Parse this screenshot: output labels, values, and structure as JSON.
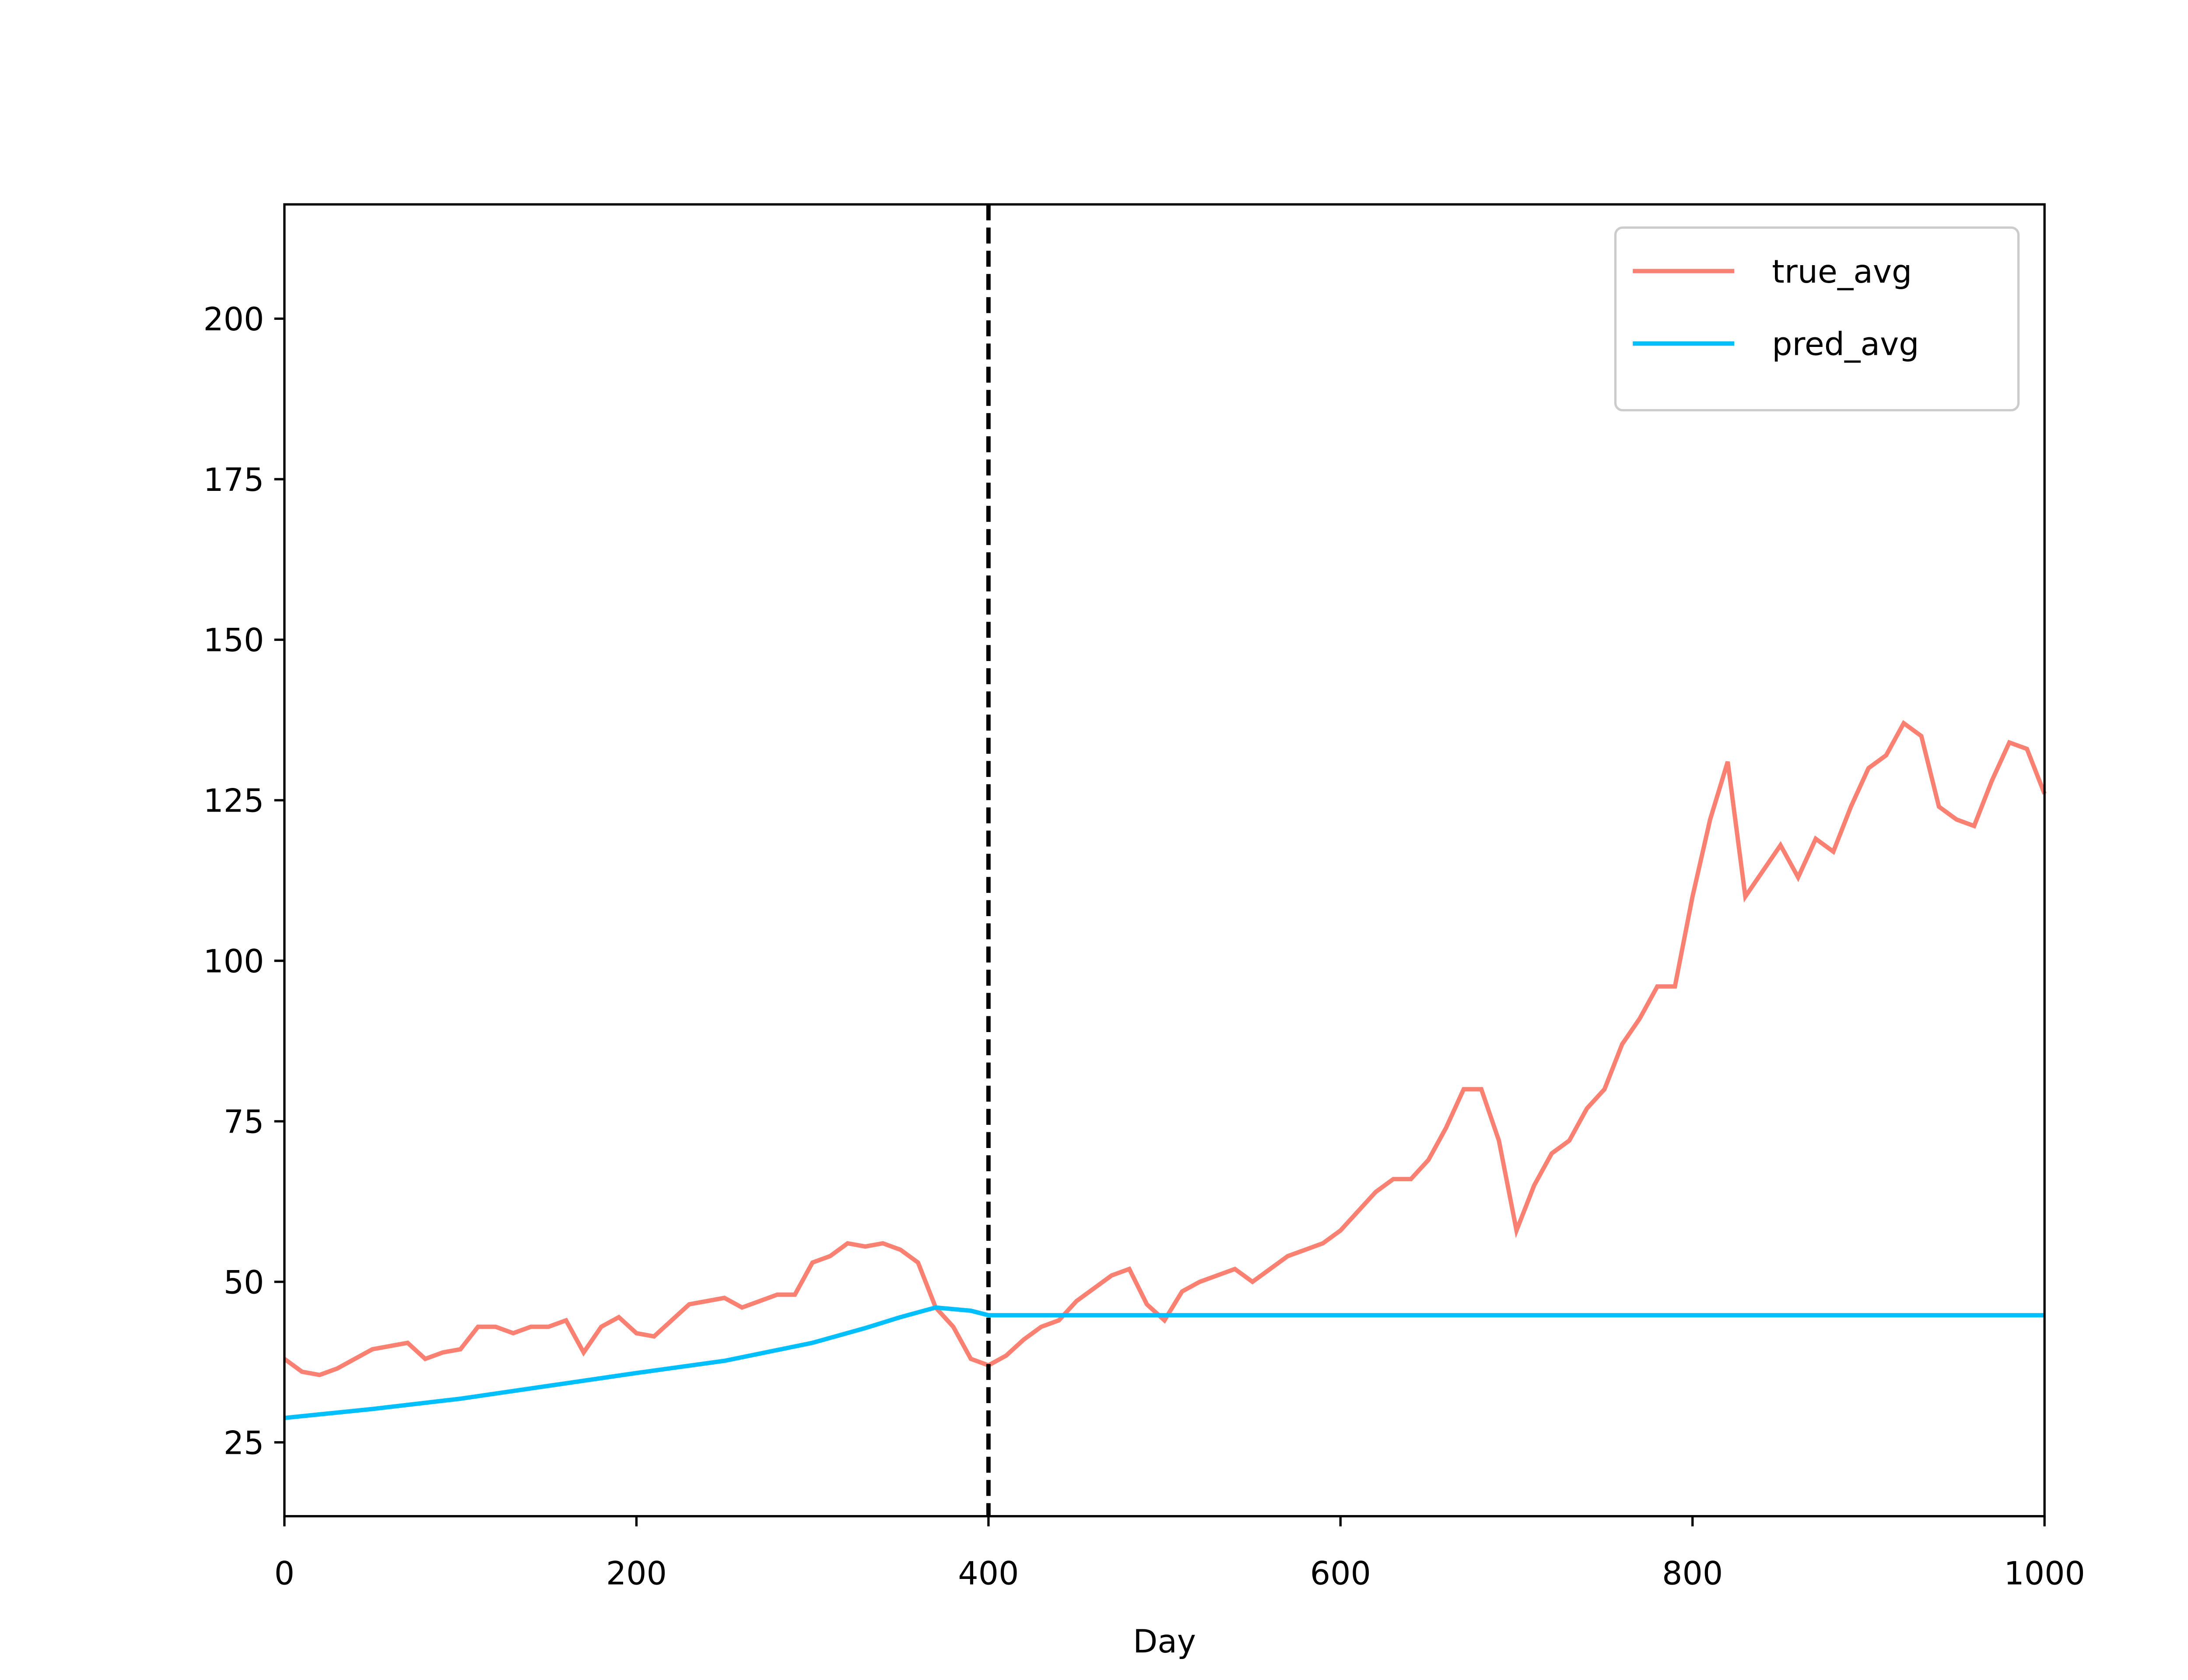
{
  "chart_data": {
    "type": "line",
    "x_label": "Day",
    "xlim": [
      0,
      1000
    ],
    "xticks": [
      0,
      200,
      400,
      600,
      800,
      1000
    ],
    "ylim": [
      13.5,
      217.8
    ],
    "yticks": [
      25,
      50,
      75,
      100,
      125,
      150,
      175,
      200
    ],
    "vline_x": 400,
    "legend": "upper right",
    "series": [
      {
        "name": "true_avg",
        "color": "#fa8072",
        "x": [
          0,
          10,
          20,
          30,
          40,
          50,
          60,
          70,
          80,
          90,
          100,
          110,
          120,
          130,
          140,
          150,
          160,
          170,
          180,
          190,
          200,
          210,
          220,
          230,
          240,
          250,
          260,
          270,
          280,
          290,
          300,
          310,
          320,
          330,
          340,
          350,
          360,
          370,
          380,
          390,
          400,
          410,
          420,
          430,
          440,
          450,
          460,
          470,
          480,
          490,
          500,
          510,
          520,
          530,
          540,
          550,
          560,
          570,
          580,
          590,
          600,
          610,
          620,
          630,
          640,
          650,
          660,
          670,
          680,
          690,
          700,
          710,
          720,
          730,
          740,
          750,
          760,
          770,
          780,
          790,
          800,
          810,
          820,
          830,
          840,
          850,
          860,
          870,
          880,
          890,
          900,
          910,
          920,
          930,
          940,
          950,
          960,
          970,
          980,
          990,
          1000
        ],
        "values": [
          38,
          36,
          35.5,
          36.5,
          38,
          39.5,
          40,
          40.5,
          38,
          39,
          39.5,
          43,
          43,
          42,
          43,
          43,
          44,
          39,
          43,
          44.5,
          42,
          41.5,
          44,
          46.5,
          47,
          47.5,
          46,
          47,
          48,
          48,
          53,
          54,
          56,
          55.5,
          56,
          55,
          53,
          46,
          43,
          38,
          37,
          38.5,
          41,
          43,
          44,
          47,
          49,
          51,
          52,
          46.5,
          44,
          48.5,
          50,
          51,
          52,
          50,
          52,
          54,
          55,
          56,
          58,
          61,
          64,
          66,
          66,
          69,
          74,
          80,
          80,
          72,
          58,
          65,
          70,
          72,
          77,
          80,
          87,
          91,
          96,
          96,
          110,
          122,
          131,
          110,
          114,
          118,
          113,
          119,
          117,
          124,
          130,
          132,
          137,
          135,
          124,
          122,
          121,
          128,
          134,
          133,
          126
        ]
      },
      {
        "name": "pred_avg",
        "color": "#00bfff",
        "x": [
          0,
          50,
          100,
          150,
          200,
          250,
          300,
          330,
          350,
          370,
          390,
          400,
          1000
        ],
        "values": [
          28.8,
          30.2,
          31.8,
          33.8,
          35.8,
          37.7,
          40.5,
          42.8,
          44.5,
          46,
          45.5,
          44.8,
          44.8
        ]
      }
    ]
  }
}
